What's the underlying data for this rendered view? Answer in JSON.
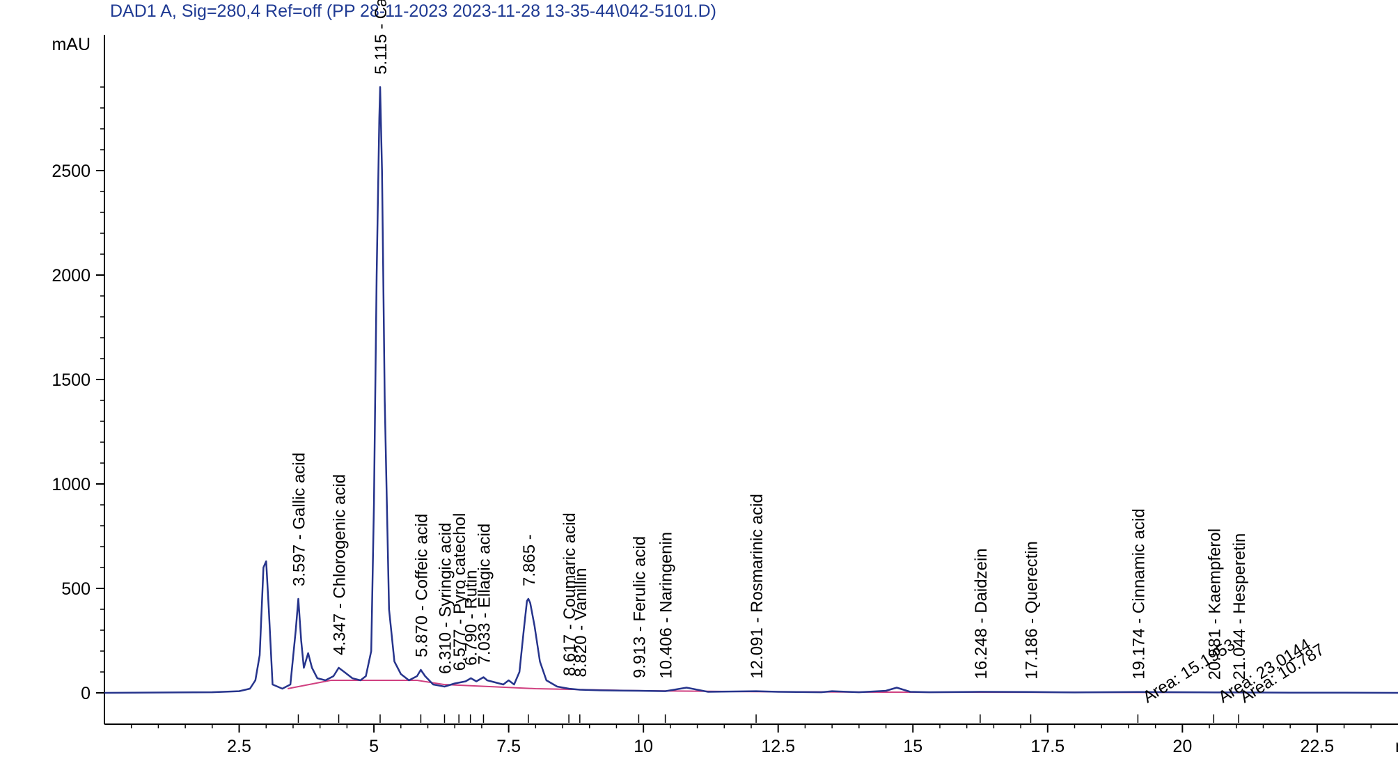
{
  "chart_data": {
    "type": "line",
    "title": "DAD1 A, Sig=280,4 Ref=off (PP 28-11-2023 2023-11-28 13-35-44\\042-5101.D)",
    "ylabel": "mAU",
    "xlabel": "min",
    "xlim": [
      0,
      24
    ],
    "ylim": [
      -150,
      3150
    ],
    "x_ticks": [
      2.5,
      5,
      7.5,
      10,
      12.5,
      15,
      17.5,
      20,
      22.5
    ],
    "x_tick_labels": [
      "2.5",
      "5",
      "7.5",
      "10",
      "12.5",
      "15",
      "17.5",
      "20",
      "22.5"
    ],
    "y_ticks": [
      0,
      500,
      1000,
      1500,
      2000,
      2500
    ],
    "y_tick_labels": [
      "0",
      "500",
      "1000",
      "1500",
      "2000",
      "2500"
    ],
    "grid": false,
    "series": [
      {
        "color": "#26348c",
        "x": [
          0,
          2.0,
          2.5,
          2.7,
          2.8,
          2.88,
          2.95,
          3.0,
          3.05,
          3.12,
          3.3,
          3.45,
          3.55,
          3.597,
          3.65,
          3.7,
          3.78,
          3.85,
          3.95,
          4.1,
          4.25,
          4.347,
          4.45,
          4.6,
          4.75,
          4.85,
          4.95,
          5.0,
          5.05,
          5.1,
          5.115,
          5.15,
          5.2,
          5.28,
          5.38,
          5.5,
          5.65,
          5.8,
          5.87,
          5.95,
          6.1,
          6.31,
          6.5,
          6.7,
          6.8,
          6.9,
          7.033,
          7.1,
          7.25,
          7.4,
          7.5,
          7.6,
          7.7,
          7.78,
          7.84,
          7.865,
          7.9,
          7.98,
          8.08,
          8.2,
          8.4,
          8.617,
          8.82,
          9.2,
          9.913,
          10.406,
          10.8,
          11.2,
          12.091,
          12.5,
          13.3,
          13.5,
          14.0,
          14.5,
          14.7,
          14.95,
          15.3,
          16.248,
          17.186,
          18.0,
          19.174,
          20.0,
          20.581,
          21.044,
          22.0,
          23.0,
          24.0
        ],
        "y": [
          0,
          3,
          8,
          20,
          60,
          180,
          600,
          630,
          400,
          40,
          20,
          40,
          300,
          450,
          250,
          120,
          190,
          120,
          70,
          60,
          80,
          120,
          100,
          70,
          60,
          80,
          200,
          900,
          2000,
          2750,
          2900,
          2500,
          1400,
          400,
          150,
          90,
          60,
          80,
          110,
          80,
          40,
          30,
          45,
          55,
          70,
          55,
          75,
          60,
          50,
          40,
          60,
          40,
          100,
          300,
          440,
          450,
          430,
          320,
          150,
          60,
          30,
          20,
          15,
          12,
          10,
          8,
          25,
          5,
          8,
          5,
          3,
          8,
          3,
          10,
          25,
          5,
          3,
          5,
          4,
          2,
          4,
          3,
          2,
          2,
          1,
          1,
          0
        ]
      },
      {
        "color": "#d04080",
        "x": [
          3.4,
          4.2,
          5.8,
          6.3,
          8.0,
          10.0,
          12.0,
          15.0,
          20.0,
          21.2
        ],
        "y": [
          20,
          60,
          60,
          40,
          20,
          10,
          6,
          3,
          2,
          1
        ]
      }
    ],
    "peaks": [
      {
        "rt": "3.597",
        "name": "Gallic acid",
        "x": 3.597,
        "y": 450
      },
      {
        "rt": "4.347",
        "name": "Chlorogenic acid",
        "x": 4.347,
        "y": 120
      },
      {
        "rt": "5.115",
        "name": "Catechin",
        "x": 5.115,
        "y": 2900
      },
      {
        "rt": "5.870",
        "name": "Coffeic acid",
        "x": 5.87,
        "y": 110
      },
      {
        "rt": "6.310",
        "name": "Syringic acid",
        "x": 6.31,
        "y": 30
      },
      {
        "rt": "6.577",
        "name": "Pyro catechol",
        "x": 6.577,
        "y": 45
      },
      {
        "rt": "6.790",
        "name": "Rutin",
        "x": 6.79,
        "y": 70
      },
      {
        "rt": "7.033",
        "name": "Ellagic acid",
        "x": 7.033,
        "y": 75
      },
      {
        "rt": "7.865",
        "name": "",
        "x": 7.865,
        "y": 450
      },
      {
        "rt": "8.617",
        "name": "Coumaric acid",
        "x": 8.617,
        "y": 20
      },
      {
        "rt": "8.820",
        "name": "Vanillin",
        "x": 8.82,
        "y": 15
      },
      {
        "rt": "9.913",
        "name": "Ferulic acid",
        "x": 9.913,
        "y": 10
      },
      {
        "rt": "10.406",
        "name": "Naringenin",
        "x": 10.406,
        "y": 8
      },
      {
        "rt": "12.091",
        "name": "Rosmarinic acid",
        "x": 12.091,
        "y": 8
      },
      {
        "rt": "16.248",
        "name": "Daidzein",
        "x": 16.248,
        "y": 5
      },
      {
        "rt": "17.186",
        "name": "Querectin",
        "x": 17.186,
        "y": 4
      },
      {
        "rt": "19.174",
        "name": "Cinnamic acid",
        "x": 19.174,
        "y": 4
      },
      {
        "rt": "20.581",
        "name": "Kaempferol",
        "x": 20.581,
        "y": 2
      },
      {
        "rt": "21.044",
        "name": "Hesperetin",
        "x": 21.044,
        "y": 2
      }
    ],
    "area_annotations": [
      {
        "text": "Area: 15.1953",
        "x": 19.35
      },
      {
        "text": "Area: 23.0144",
        "x": 20.75
      },
      {
        "text": "Area: 10.787",
        "x": 21.15
      }
    ]
  }
}
